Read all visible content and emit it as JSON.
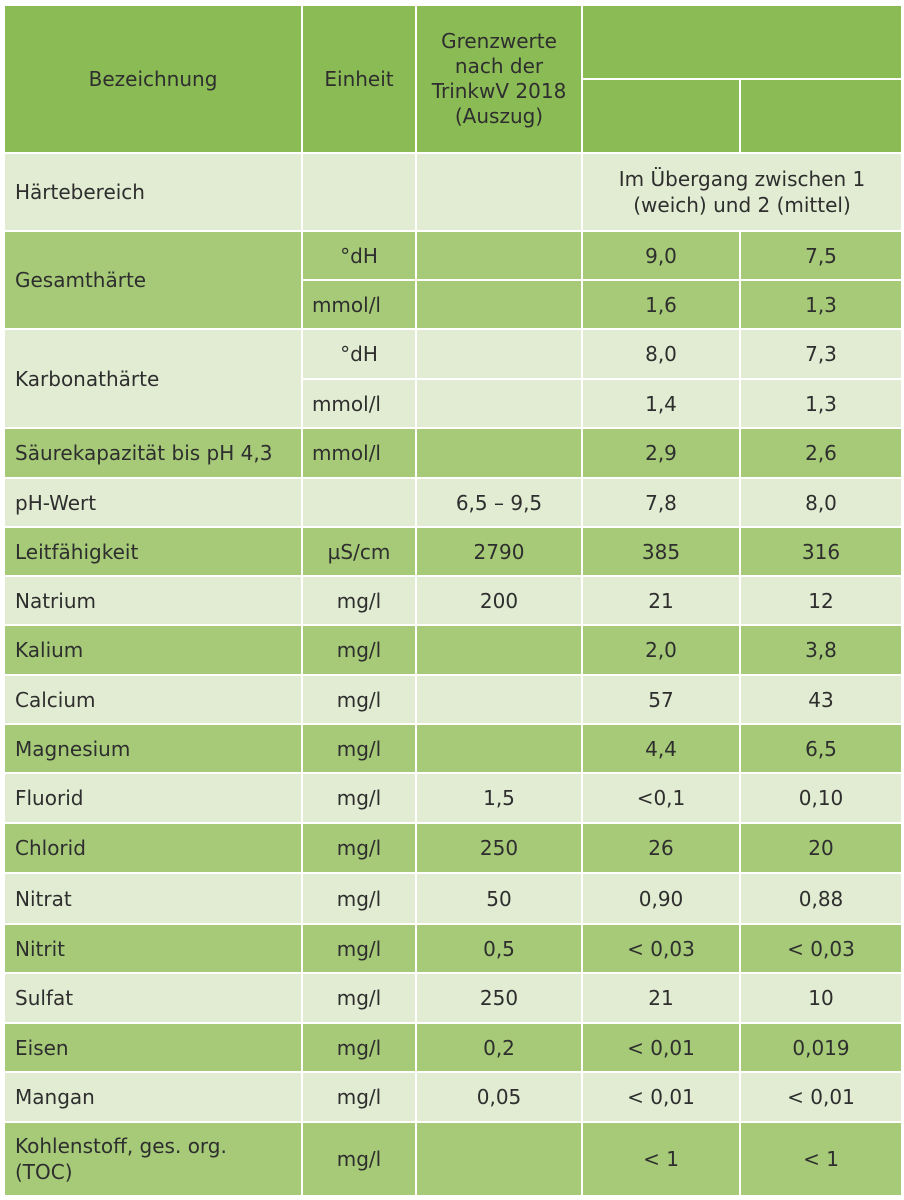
{
  "header": {
    "col_name": "Bezeichnung",
    "col_unit": "Einheit",
    "col_limit": "Grenzwerte nach der TrinkwV 2018 (Auszug)"
  },
  "haertebereich": {
    "label": "Härtebereich",
    "value": "Im Übergang zwischen 1 (weich) und 2 (mittel)"
  },
  "gesamthaerte": {
    "label": "Gesamthärte",
    "rows": [
      {
        "unit": "°dH",
        "limit": "",
        "v1": "9,0",
        "v2": "7,5"
      },
      {
        "unit": "mmol/l",
        "limit": "",
        "v1": "1,6",
        "v2": "1,3"
      }
    ]
  },
  "karbonathaerte": {
    "label": "Karbonathärte",
    "rows": [
      {
        "unit": "°dH",
        "limit": "",
        "v1": "8,0",
        "v2": "7,3"
      },
      {
        "unit": "mmol/l",
        "limit": "",
        "v1": "1,4",
        "v2": "1,3"
      }
    ]
  },
  "rows": [
    {
      "name": "Säurekapazität bis pH 4,3",
      "unit": "mmol/l",
      "limit": "",
      "v1": "2,9",
      "v2": "2,6"
    },
    {
      "name": "pH-Wert",
      "unit": "",
      "limit": "6,5 – 9,5",
      "v1": "7,8",
      "v2": "8,0"
    },
    {
      "name": "Leitfähigkeit",
      "unit": "µS/cm",
      "limit": "2790",
      "v1": "385",
      "v2": "316"
    },
    {
      "name": "Natrium",
      "unit": "mg/l",
      "limit": "200",
      "v1": "21",
      "v2": "12"
    },
    {
      "name": "Kalium",
      "unit": "mg/l",
      "limit": "",
      "v1": "2,0",
      "v2": "3,8"
    },
    {
      "name": "Calcium",
      "unit": "mg/l",
      "limit": "",
      "v1": "57",
      "v2": "43"
    },
    {
      "name": "Magnesium",
      "unit": "mg/l",
      "limit": "",
      "v1": "4,4",
      "v2": "6,5"
    },
    {
      "name": "Fluorid",
      "unit": "mg/l",
      "limit": "1,5",
      "v1": "<0,1",
      "v2": "0,10"
    },
    {
      "name": "Chlorid",
      "unit": "mg/l",
      "limit": "250",
      "v1": "26",
      "v2": "20"
    },
    {
      "name": "Nitrat",
      "unit": "mg/l",
      "limit": "50",
      "v1": "0,90",
      "v2": "0,88"
    },
    {
      "name": "Nitrit",
      "unit": "mg/l",
      "limit": "0,5",
      "v1": "< 0,03",
      "v2": "< 0,03"
    },
    {
      "name": "Sulfat",
      "unit": "mg/l",
      "limit": "250",
      "v1": "21",
      "v2": "10"
    },
    {
      "name": "Eisen",
      "unit": "mg/l",
      "limit": "0,2",
      "v1": "< 0,01",
      "v2": "0,019"
    },
    {
      "name": "Mangan",
      "unit": "mg/l",
      "limit": "0,05",
      "v1": "< 0,01",
      "v2": "< 0,01"
    },
    {
      "name": "Kohlenstoff, ges. org. (TOC)",
      "unit": "mg/l",
      "limit": "",
      "v1": "< 1",
      "v2": "< 1"
    }
  ],
  "colors": {
    "header": "#8bbb55",
    "row_dark": "#a6ca78",
    "row_light": "#e2ecd2",
    "text": "#2e2e2e"
  }
}
